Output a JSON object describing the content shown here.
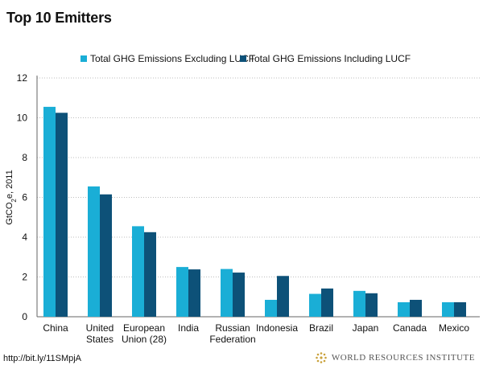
{
  "header": {
    "title": "Top 10 Emitters"
  },
  "colors": {
    "excluding": "#1aaed6",
    "including": "#0d5178",
    "grid": "#bdbdbd",
    "axis": "#666666",
    "brand": "#c9a13b"
  },
  "chart_data": {
    "type": "bar",
    "title": "Top 10 Emitters",
    "ylabel_main": "GtCO",
    "ylabel_sub": "2",
    "ylabel_rest": "e, 2011",
    "ylim": [
      0,
      12
    ],
    "yticks": [
      "0",
      "2",
      "4",
      "6",
      "8",
      "10",
      "12"
    ],
    "grid": true,
    "legend_position": "top",
    "categories": [
      [
        "China"
      ],
      [
        "United",
        "States"
      ],
      [
        "European",
        "Union (28)"
      ],
      [
        "India"
      ],
      [
        "Russian",
        "Federation"
      ],
      [
        "Indonesia"
      ],
      [
        "Brazil"
      ],
      [
        "Japan"
      ],
      [
        "Canada"
      ],
      [
        "Mexico"
      ]
    ],
    "series": [
      {
        "name": "Total GHG Emissions Excluding LUCF",
        "values": [
          10.55,
          6.55,
          4.55,
          2.5,
          2.4,
          0.85,
          1.15,
          1.3,
          0.73,
          0.73
        ]
      },
      {
        "name": "Total GHG Emissions Including LUCF",
        "values": [
          10.25,
          6.15,
          4.25,
          2.38,
          2.22,
          2.05,
          1.42,
          1.18,
          0.85,
          0.73
        ]
      }
    ]
  },
  "footer": {
    "source": "http://bit.ly/11SMpjA",
    "brand": "WORLD RESOURCES INSTITUTE"
  }
}
